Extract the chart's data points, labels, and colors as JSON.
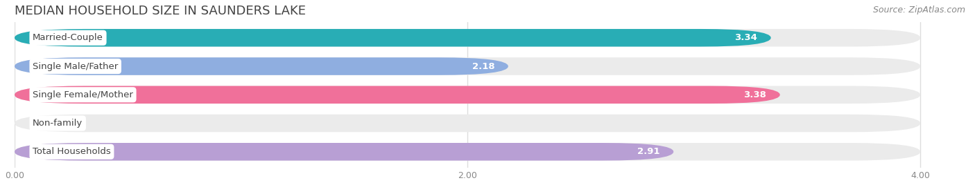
{
  "title": "MEDIAN HOUSEHOLD SIZE IN SAUNDERS LAKE",
  "source": "Source: ZipAtlas.com",
  "categories": [
    "Married-Couple",
    "Single Male/Father",
    "Single Female/Mother",
    "Non-family",
    "Total Households"
  ],
  "values": [
    3.34,
    2.18,
    3.38,
    0.0,
    2.91
  ],
  "bar_colors": [
    "#29adb5",
    "#8faee0",
    "#f0709a",
    "#f5cfa0",
    "#b89fd4"
  ],
  "bar_bg_color": "#ebebeb",
  "xlim_max": 4.0,
  "xticks": [
    0.0,
    2.0,
    4.0
  ],
  "xtick_labels": [
    "0.00",
    "2.00",
    "4.00"
  ],
  "title_fontsize": 13,
  "source_fontsize": 9,
  "label_fontsize": 9.5,
  "value_fontsize": 9.5,
  "background_color": "#ffffff",
  "grid_color": "#dddddd"
}
